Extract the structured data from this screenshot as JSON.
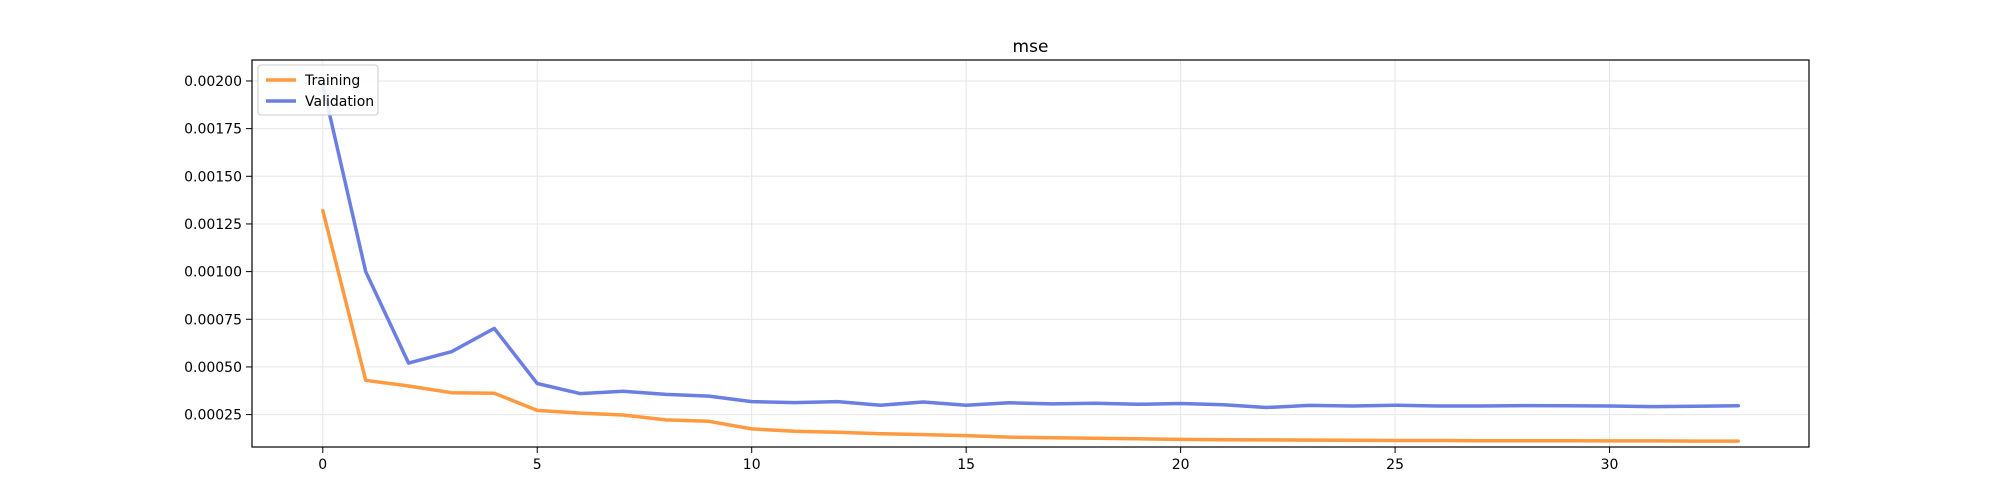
{
  "chart_data": {
    "type": "line",
    "title": "mse",
    "xlabel": "",
    "ylabel": "",
    "xlim": [
      -1.65,
      34.65
    ],
    "ylim": [
      8e-05,
      0.00211
    ],
    "xticks": [
      0,
      5,
      10,
      15,
      20,
      25,
      30
    ],
    "yticks": [
      0.00025,
      0.0005,
      0.00075,
      0.001,
      0.00125,
      0.0015,
      0.00175,
      0.002
    ],
    "ytick_labels": [
      "0.00025",
      "0.00050",
      "0.00075",
      "0.00100",
      "0.00125",
      "0.00150",
      "0.00175",
      "0.00200"
    ],
    "grid": true,
    "legend_position": "top-left",
    "x": [
      0,
      1,
      2,
      3,
      4,
      5,
      6,
      7,
      8,
      9,
      10,
      11,
      12,
      13,
      14,
      15,
      16,
      17,
      18,
      19,
      20,
      21,
      22,
      23,
      24,
      25,
      26,
      27,
      28,
      29,
      30,
      31,
      32,
      33
    ],
    "series": [
      {
        "name": "Training",
        "color": "#ff9a40",
        "values": [
          0.00132,
          0.00043,
          0.0004,
          0.000365,
          0.000362,
          0.000272,
          0.000258,
          0.000248,
          0.000222,
          0.000215,
          0.000175,
          0.000163,
          0.000157,
          0.00015,
          0.000145,
          0.00014,
          0.000132,
          0.000129,
          0.000126,
          0.000123,
          0.00012,
          0.000118,
          0.000117,
          0.000116,
          0.000115,
          0.000114,
          0.000114,
          0.000113,
          0.000113,
          0.000113,
          0.000112,
          0.000112,
          0.000111,
          0.000111
        ]
      },
      {
        "name": "Validation",
        "color": "#6b7fe3",
        "values": [
          0.00198,
          0.001,
          0.00052,
          0.00058,
          0.000702,
          0.000413,
          0.00036,
          0.000372,
          0.000356,
          0.000347,
          0.000318,
          0.000313,
          0.000318,
          0.000299,
          0.000316,
          0.000299,
          0.000312,
          0.000306,
          0.00031,
          0.000304,
          0.000308,
          0.000302,
          0.000287,
          0.000298,
          0.000295,
          0.000299,
          0.000295,
          0.000295,
          0.000297,
          0.000296,
          0.000295,
          0.000292,
          0.000294,
          0.000296
        ]
      }
    ]
  }
}
